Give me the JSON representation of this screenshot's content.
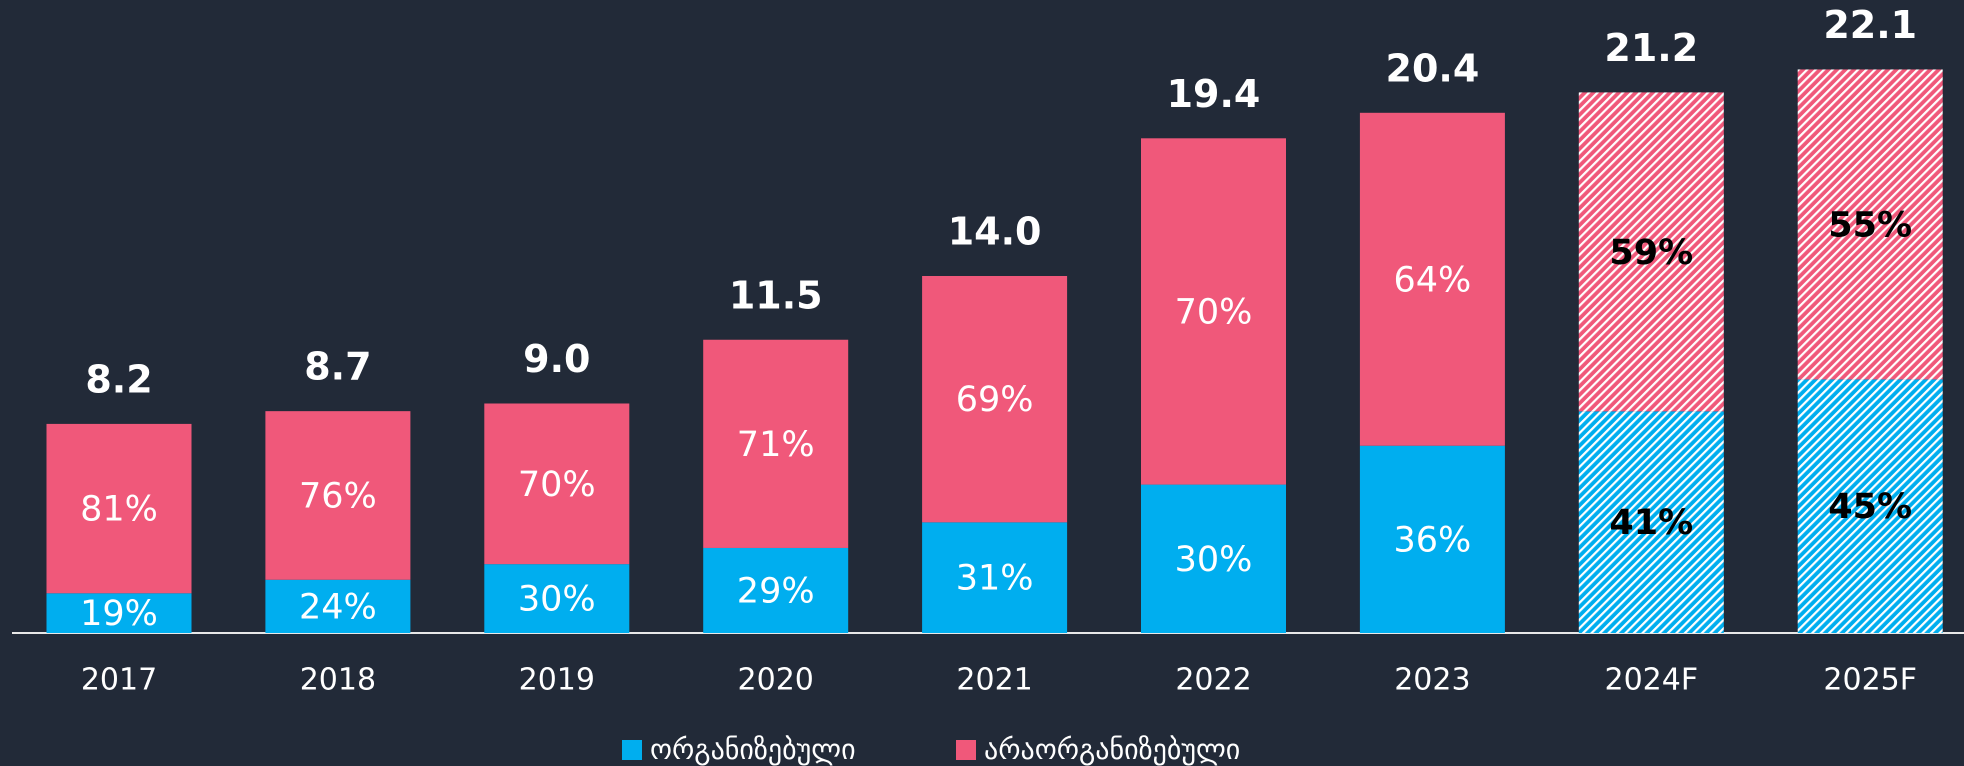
{
  "chart_data": {
    "type": "bar",
    "categories": [
      "2017",
      "2018",
      "2019",
      "2020",
      "2021",
      "2022",
      "2023",
      "2024F",
      "2025F"
    ],
    "totals": {
      "values": [
        8.2,
        8.7,
        9.0,
        11.5,
        14.0,
        19.4,
        20.4,
        21.2,
        22.1
      ],
      "value_labels": [
        "8.2",
        "8.7",
        "9.0",
        "11.5",
        "14.0",
        "19.4",
        "20.4",
        "21.2",
        "22.1"
      ]
    },
    "hatch": [
      false,
      false,
      false,
      false,
      false,
      false,
      false,
      true,
      true
    ],
    "series": [
      {
        "name": "ორგანიზებული",
        "color": "#00aeef",
        "values": [
          19,
          24,
          30,
          29,
          31,
          30,
          36,
          41,
          45
        ],
        "value_labels": [
          "19%",
          "24%",
          "30%",
          "29%",
          "31%",
          "30%",
          "36%",
          "41%",
          "45%"
        ]
      },
      {
        "name": "არაორგანიზებული",
        "color": "#f0587a",
        "values": [
          81,
          76,
          70,
          71,
          69,
          70,
          64,
          59,
          55
        ],
        "value_labels": [
          "81%",
          "76%",
          "70%",
          "71%",
          "69%",
          "70%",
          "64%",
          "59%",
          "55%"
        ]
      }
    ]
  }
}
